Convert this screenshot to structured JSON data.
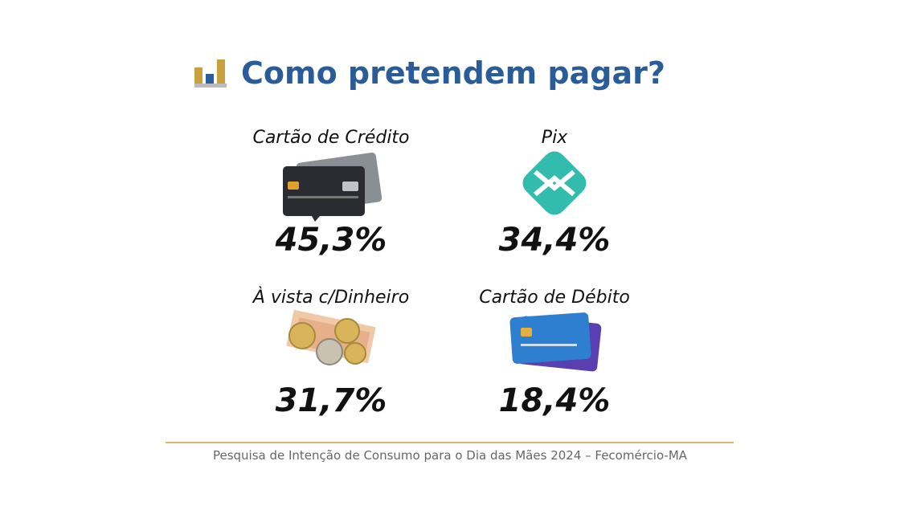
{
  "header": {
    "title": "Como pretendem pagar?"
  },
  "items": [
    {
      "label": "Cartão de Crédito",
      "value": "45,3%"
    },
    {
      "label": "Pix",
      "value": "34,4%"
    },
    {
      "label": "À vista c/Dinheiro",
      "value": "31,7%"
    },
    {
      "label": "Cartão de Débito",
      "value": "18,4%"
    }
  ],
  "footer": {
    "source": "Pesquisa de Intenção de Consumo para o Dia das Mães 2024 – Fecomércio-MA"
  }
}
